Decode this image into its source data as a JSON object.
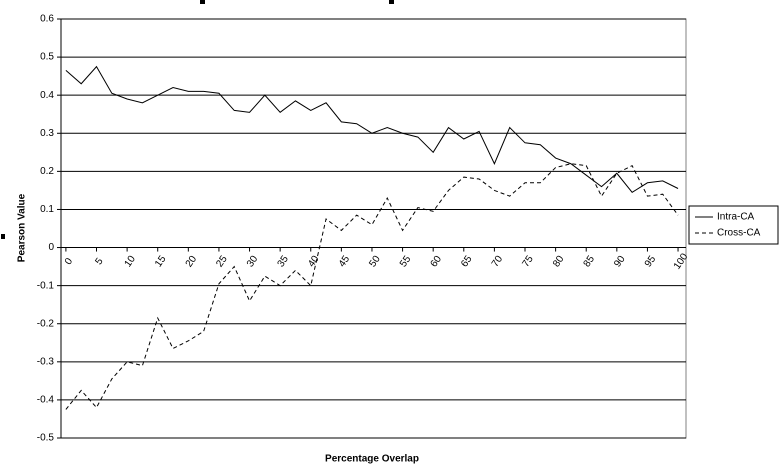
{
  "chart_data": {
    "type": "line",
    "xlabel": "Percentage Overlap",
    "ylabel": "Pearson Value",
    "x": [
      0,
      2.5,
      5,
      7.5,
      10,
      12.5,
      15,
      17.5,
      20,
      22.5,
      25,
      27.5,
      30,
      32.5,
      35,
      37.5,
      40,
      42.5,
      45,
      47.5,
      50,
      52.5,
      55,
      57.5,
      60,
      62.5,
      65,
      67.5,
      70,
      72.5,
      75,
      77.5,
      80,
      82.5,
      85,
      87.5,
      90,
      92.5,
      95,
      97.5,
      100
    ],
    "series": [
      {
        "name": "Intra-CA",
        "color": "#000000",
        "dash": "solid",
        "values": [
          0.465,
          0.43,
          0.475,
          0.405,
          0.39,
          0.38,
          0.4,
          0.42,
          0.41,
          0.41,
          0.405,
          0.36,
          0.355,
          0.4,
          0.355,
          0.385,
          0.36,
          0.38,
          0.33,
          0.325,
          0.3,
          0.315,
          0.3,
          0.29,
          0.25,
          0.315,
          0.285,
          0.305,
          0.22,
          0.315,
          0.275,
          0.27,
          0.235,
          0.22,
          0.19,
          0.16,
          0.195,
          0.145,
          0.17,
          0.175,
          0.155
        ]
      },
      {
        "name": "Cross-CA",
        "color": "#000000",
        "dash": "dashed",
        "values": [
          -0.425,
          -0.375,
          -0.42,
          -0.345,
          -0.3,
          -0.31,
          -0.185,
          -0.265,
          -0.245,
          -0.22,
          -0.095,
          -0.05,
          -0.14,
          -0.075,
          -0.1,
          -0.06,
          -0.1,
          0.075,
          0.045,
          0.085,
          0.06,
          0.13,
          0.045,
          0.105,
          0.095,
          0.15,
          0.185,
          0.18,
          0.15,
          0.135,
          0.17,
          0.17,
          0.21,
          0.22,
          0.215,
          0.135,
          0.195,
          0.215,
          0.135,
          0.14,
          0.085
        ]
      }
    ],
    "xlim": [
      -0.8,
      101.3
    ],
    "xticks": [
      0,
      5,
      10,
      15,
      20,
      25,
      30,
      35,
      40,
      45,
      50,
      55,
      60,
      65,
      70,
      75,
      80,
      85,
      90,
      95,
      100
    ],
    "ylim": [
      -0.5,
      0.6
    ],
    "yticks": [
      -0.5,
      -0.4,
      -0.3,
      -0.2,
      -0.1,
      0,
      0.1,
      0.2,
      0.3,
      0.4,
      0.5,
      0.6
    ],
    "grid": true,
    "legend": "right"
  }
}
